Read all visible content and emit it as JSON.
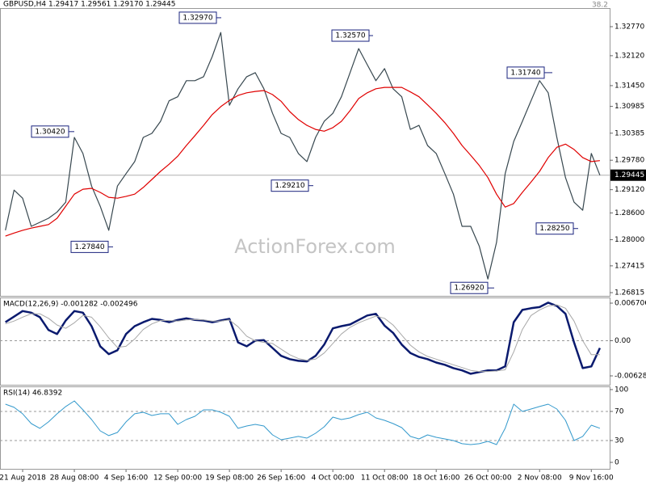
{
  "header": "GBPUSD,H4  1.29417 1.29561 1.29170 1.29445",
  "watermark": "ActionForex.com",
  "chart_data": [
    {
      "type": "line",
      "corner_label": "38.2",
      "categories": [
        null,
        null,
        "21 Aug 2018",
        null,
        null,
        null,
        null,
        null,
        "28 Aug 08:00",
        null,
        null,
        null,
        null,
        null,
        "4 Sep 16:00",
        null,
        null,
        null,
        null,
        null,
        "12 Sep 00:00",
        null,
        null,
        null,
        null,
        null,
        "19 Sep 08:00",
        null,
        null,
        null,
        null,
        null,
        "26 Sep 16:00",
        null,
        null,
        null,
        null,
        null,
        "4 Oct 00:00",
        null,
        null,
        null,
        null,
        null,
        "11 Oct 08:00",
        null,
        null,
        null,
        null,
        null,
        "18 Oct 16:00",
        null,
        null,
        null,
        null,
        null,
        "26 Oct 00:00",
        null,
        null,
        null,
        null,
        null,
        "2 Nov 08:00",
        null,
        null,
        null,
        null,
        null,
        "9 Nov 16:00",
        null
      ],
      "series": [
        {
          "color": "#37474f",
          "values": [
            1.2821,
            1.2911,
            1.2893,
            1.283,
            1.2839,
            1.2848,
            1.2862,
            1.2884,
            1.3029,
            1.2993,
            1.292,
            1.2875,
            1.2821,
            1.292,
            1.2948,
            1.2975,
            1.3029,
            1.3038,
            1.3065,
            1.3111,
            1.312,
            1.3156,
            1.3156,
            1.3165,
            1.321,
            1.3264,
            1.3101,
            1.3138,
            1.3165,
            1.3174,
            1.3138,
            1.3083,
            1.3038,
            1.3029,
            1.2993,
            1.2975,
            1.3029,
            1.3065,
            1.3083,
            1.312,
            1.3174,
            1.3228,
            1.3192,
            1.3156,
            1.3183,
            1.3138,
            1.312,
            1.3047,
            1.3056,
            1.3011,
            1.2993,
            1.2948,
            1.2902,
            1.283,
            1.283,
            1.2785,
            1.2712,
            1.2794,
            1.2948,
            1.302,
            1.3065,
            1.3111,
            1.3156,
            1.3129,
            1.3029,
            1.2939,
            1.2884,
            1.2866,
            1.2993,
            1.29445
          ]
        },
        {
          "color": "#e00000",
          "values": [
            1.2808,
            1.2815,
            1.2821,
            1.2826,
            1.283,
            1.2834,
            1.2848,
            1.2875,
            1.2902,
            1.2913,
            1.2915,
            1.2906,
            1.2895,
            1.2893,
            1.2897,
            1.2902,
            1.2917,
            1.2935,
            1.2953,
            1.2969,
            1.2987,
            1.3011,
            1.3033,
            1.3056,
            1.308,
            1.3098,
            1.3112,
            1.3123,
            1.3129,
            1.3132,
            1.3134,
            1.3125,
            1.311,
            1.3087,
            1.3069,
            1.3056,
            1.3047,
            1.3043,
            1.3051,
            1.3065,
            1.3089,
            1.3116,
            1.3129,
            1.3138,
            1.3141,
            1.3141,
            1.3141,
            1.3131,
            1.312,
            1.3102,
            1.3083,
            1.3062,
            1.3038,
            1.3011,
            1.2989,
            1.2966,
            1.2939,
            1.2902,
            1.2873,
            1.2881,
            1.2906,
            1.2929,
            1.2953,
            1.2984,
            1.3007,
            1.3014,
            1.3002,
            1.2984,
            1.2975,
            1.2977
          ]
        }
      ],
      "annotations": [
        {
          "value": 1.3297,
          "label": "1.32970"
        },
        {
          "value": 1.3257,
          "label": "1.32570"
        },
        {
          "value": 1.3042,
          "label": "1.30420"
        },
        {
          "value": 1.2921,
          "label": "1.29210"
        },
        {
          "value": 1.2784,
          "label": "1.27840"
        },
        {
          "value": 1.2692,
          "label": "1.26920"
        },
        {
          "value": 1.3174,
          "label": "1.31740"
        },
        {
          "value": 1.2825,
          "label": "1.28250"
        }
      ],
      "last": {
        "value": 1.29445,
        "label": "1.29445"
      },
      "ylim": [
        1.26743,
        1.33186
      ],
      "yticks": [
        {
          "value": 1.3277,
          "label": "1.32770"
        },
        {
          "value": 1.3212,
          "label": "1.32120"
        },
        {
          "value": 1.3145,
          "label": "1.31450"
        },
        {
          "value": 1.30985,
          "label": "1.30985"
        },
        {
          "value": 1.30385,
          "label": "1.30385"
        },
        {
          "value": 1.2978,
          "label": "1.29780"
        },
        {
          "value": 1.2912,
          "label": "1.29120"
        },
        {
          "value": 1.286,
          "label": "1.28600"
        },
        {
          "value": 1.28,
          "label": "1.28000"
        },
        {
          "value": 1.27415,
          "label": "1.27415"
        },
        1.26815
      ]
    },
    {
      "type": "line",
      "title": "MACD(12,26,9) -0.001282 -0.002496",
      "series": [
        {
          "color": "#0a1a6e",
          "width": 2.5,
          "values": [
            0.0033,
            0.0043,
            0.0053,
            0.005,
            0.0042,
            0.0019,
            0.0012,
            0.0036,
            0.0053,
            0.005,
            0.0026,
            -0.001,
            -0.0024,
            -0.0017,
            0.0012,
            0.0026,
            0.0033,
            0.0039,
            0.0037,
            0.0033,
            0.0037,
            0.004,
            0.0037,
            0.0036,
            0.0033,
            0.0036,
            0.0039,
            -0.0003,
            -0.001,
            0.0,
            0.0001,
            -0.0013,
            -0.0027,
            -0.0033,
            -0.0036,
            -0.0037,
            -0.0027,
            -0.0007,
            0.0022,
            0.0026,
            0.0029,
            0.0037,
            0.0045,
            0.0048,
            0.0027,
            0.0014,
            -0.0007,
            -0.0022,
            -0.0029,
            -0.0033,
            -0.0039,
            -0.0043,
            -0.0049,
            -0.0053,
            -0.0059,
            -0.0056,
            -0.0053,
            -0.0053,
            -0.0046,
            0.0033,
            0.0055,
            0.0058,
            0.006,
            0.0068,
            0.0062,
            0.0048,
            -0.0003,
            -0.0049,
            -0.0046,
            -0.0013
          ]
        },
        {
          "color": "#a8a8a8",
          "width": 1,
          "values": [
            0.003,
            0.0035,
            0.0042,
            0.0048,
            0.0048,
            0.004,
            0.0028,
            0.0022,
            0.0032,
            0.0045,
            0.0042,
            0.0025,
            0.0005,
            -0.0012,
            -0.001,
            0.0003,
            0.002,
            0.003,
            0.0036,
            0.0036,
            0.0035,
            0.0037,
            0.0038,
            0.0037,
            0.0035,
            0.0035,
            0.0037,
            0.0025,
            0.0008,
            0.0,
            -0.0003,
            -0.0005,
            -0.0015,
            -0.0025,
            -0.0032,
            -0.0035,
            -0.0033,
            -0.0022,
            -0.0005,
            0.0012,
            0.0024,
            0.0032,
            0.0038,
            0.0044,
            0.004,
            0.0028,
            0.001,
            -0.0008,
            -0.002,
            -0.0028,
            -0.0033,
            -0.0038,
            -0.0043,
            -0.0048,
            -0.0053,
            -0.0055,
            -0.0055,
            -0.0054,
            -0.0052,
            -0.002,
            0.002,
            0.0045,
            0.0055,
            0.0062,
            0.0064,
            0.0058,
            0.0035,
            0.0,
            -0.0025,
            -0.0025
          ]
        }
      ],
      "levels": [
        0
      ],
      "ylim": [
        -0.00787,
        0.00772
      ],
      "yticks": [
        0.006706,
        {
          "value": 0,
          "label": "0.00"
        },
        -0.00628
      ]
    },
    {
      "type": "line",
      "title": "RSI(14) 46.8392",
      "series": [
        {
          "color": "#3399cc",
          "width": 1,
          "values": [
            80,
            75.6,
            66.7,
            53.3,
            46.7,
            55.6,
            66.7,
            76.7,
            84.4,
            72.2,
            58.9,
            43.3,
            36.7,
            41.1,
            55.6,
            66.7,
            68.9,
            64.4,
            66.7,
            66.7,
            52.2,
            58.9,
            63.3,
            72.2,
            72.2,
            68.9,
            63.3,
            46.7,
            50.0,
            52.2,
            50.0,
            37.8,
            31.1,
            33.3,
            35.6,
            33.3,
            40.0,
            48.9,
            62.2,
            58.9,
            61.1,
            65.6,
            68.9,
            61.1,
            57.8,
            53.3,
            47.8,
            35.6,
            32.2,
            37.8,
            34.4,
            32.2,
            30.0,
            25.6,
            24.4,
            25.6,
            28.9,
            24.4,
            46.7,
            80.0,
            70.0,
            73.3,
            76.7,
            80.0,
            73.3,
            57.8,
            30.0,
            35.6,
            51.1,
            46.8392
          ]
        }
      ],
      "levels": [
        70,
        30
      ],
      "ylim": [
        -8.9,
        104.4
      ],
      "yticks": [
        100,
        70,
        30,
        0
      ]
    }
  ]
}
